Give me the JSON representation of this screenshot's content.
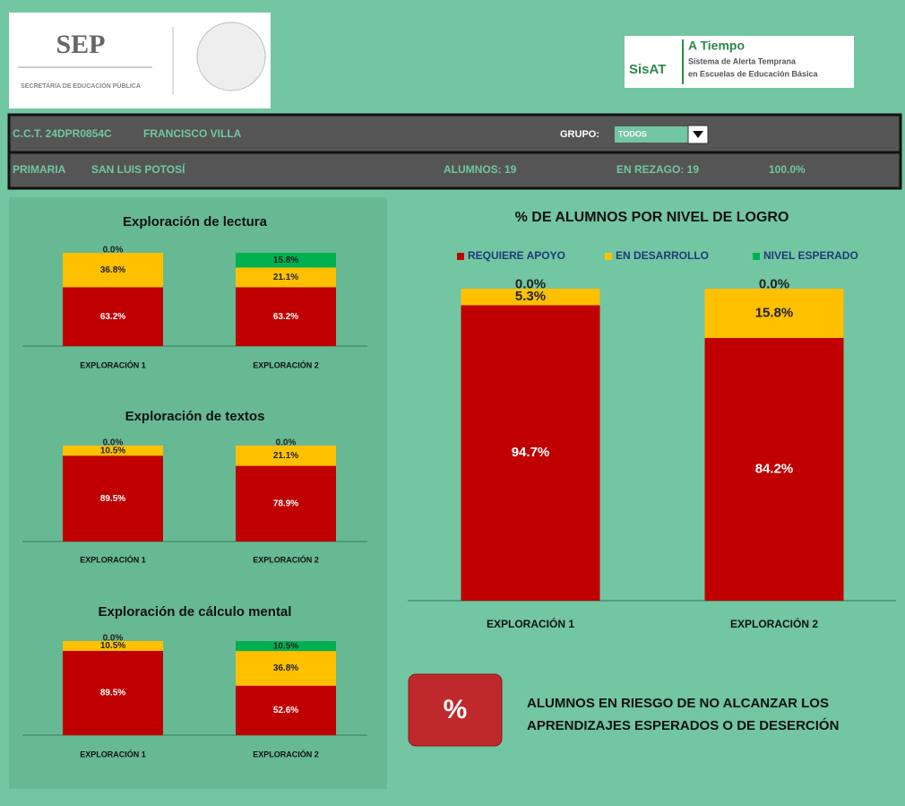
{
  "header": {
    "sep": "SEP",
    "sep_sub": "SECRETARÍA DE EDUCACIÓN PÚBLICA",
    "sisat": "SisAT",
    "atiempo": "A Tiempo",
    "atiempo_sub1": "Sistema de Alerta Temprana",
    "atiempo_sub2": "en Escuelas de Educación Básica"
  },
  "info": {
    "cct": "C.C.T. 24DPR0854C",
    "school": "FRANCISCO VILLA",
    "grupo_label": "GRUPO:",
    "grupo": "TODOS",
    "level": "PRIMARIA",
    "state": "SAN LUIS POTOSÍ",
    "alumnos": "ALUMNOS: 19",
    "rezago": "EN REZAGO: 19",
    "rezago_pct": "100.0%"
  },
  "chart_data": [
    {
      "type": "stacked_bar",
      "title": "Exploración de lectura",
      "categories": [
        "EXPLORACIÓN 1",
        "EXPLORACIÓN 2"
      ],
      "series": [
        {
          "color": "#c00000",
          "values": [
            63.2,
            63.2
          ],
          "value_labels": [
            "63.2%",
            "63.2%"
          ]
        },
        {
          "color": "#ffc000",
          "values": [
            36.8,
            21.1
          ],
          "value_labels": [
            "36.8%",
            "21.1%"
          ]
        },
        {
          "color": "#00b050",
          "values": [
            0.0,
            15.8
          ],
          "value_labels": [
            "0.0%",
            "15.8%"
          ]
        }
      ]
    },
    {
      "type": "stacked_bar",
      "title": "Exploración de textos",
      "categories": [
        "EXPLORACIÓN 1",
        "EXPLORACIÓN 2"
      ],
      "series": [
        {
          "color": "#c00000",
          "values": [
            89.5,
            78.9
          ],
          "value_labels": [
            "89.5%",
            "78.9%"
          ]
        },
        {
          "color": "#ffc000",
          "values": [
            10.5,
            21.1
          ],
          "value_labels": [
            "10.5%",
            "21.1%"
          ]
        },
        {
          "color": "#00b050",
          "values": [
            0.0,
            0.0
          ],
          "value_labels": [
            "0.0%",
            "0.0%"
          ]
        }
      ]
    },
    {
      "type": "stacked_bar",
      "title": "Exploración de cálculo mental",
      "categories": [
        "EXPLORACIÓN 1",
        "EXPLORACIÓN 2"
      ],
      "series": [
        {
          "color": "#c00000",
          "values": [
            89.5,
            52.6
          ],
          "value_labels": [
            "89.5%",
            "52.6%"
          ]
        },
        {
          "color": "#ffc000",
          "values": [
            10.5,
            36.8
          ],
          "value_labels": [
            "10.5%",
            "36.8%"
          ]
        },
        {
          "color": "#00b050",
          "values": [
            0.0,
            10.5
          ],
          "value_labels": [
            "0.0%",
            "10.5%"
          ]
        }
      ]
    },
    {
      "type": "stacked_bar",
      "title": "% DE ALUMNOS POR NIVEL DE LOGRO",
      "categories": [
        "EXPLORACIÓN 1",
        "EXPLORACIÓN 2"
      ],
      "series": [
        {
          "name": "REQUIERE APOYO",
          "color": "#c00000",
          "values": [
            94.7,
            84.2
          ],
          "value_labels": [
            "94.7%",
            "84.2%"
          ]
        },
        {
          "name": "EN DESARROLLO",
          "color": "#ffc000",
          "values": [
            5.3,
            15.8
          ],
          "value_labels": [
            "5.3%",
            "15.8%"
          ]
        },
        {
          "name": "NIVEL ESPERADO",
          "color": "#00b050",
          "values": [
            0.0,
            0.0
          ],
          "value_labels": [
            "0.0%",
            "0.0%"
          ]
        }
      ]
    }
  ],
  "risk": {
    "icon": "%",
    "text_line1": "ALUMNOS EN RIESGO DE NO ALCANZAR LOS",
    "text_line2": "APRENDIZAJES ESPERADOS O DE DESERCIÓN"
  }
}
